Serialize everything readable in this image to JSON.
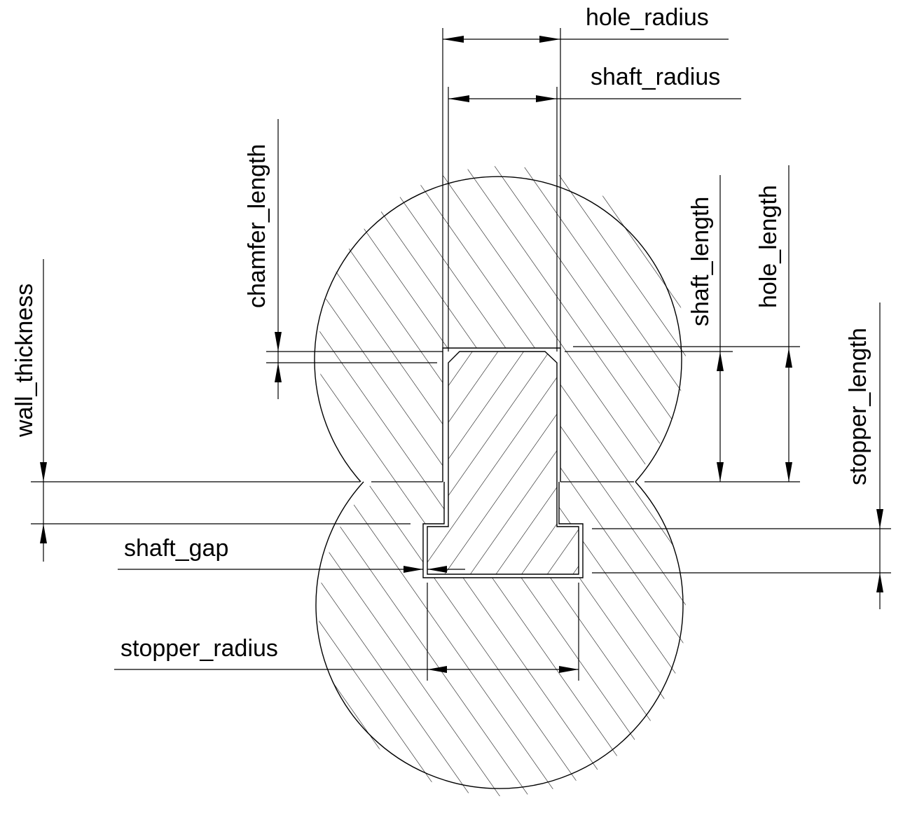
{
  "labels": {
    "hole_radius": "hole_radius",
    "shaft_radius": "shaft_radius",
    "chamfer_length": "chamfer_length",
    "shaft_length": "shaft_length",
    "hole_length": "hole_length",
    "stopper_length": "stopper_length",
    "wall_thickness": "wall_thickness",
    "shaft_gap": "shaft_gap",
    "stopper_radius": "stopper_radius"
  },
  "colors": {
    "line": "#000000",
    "background": "#ffffff"
  }
}
